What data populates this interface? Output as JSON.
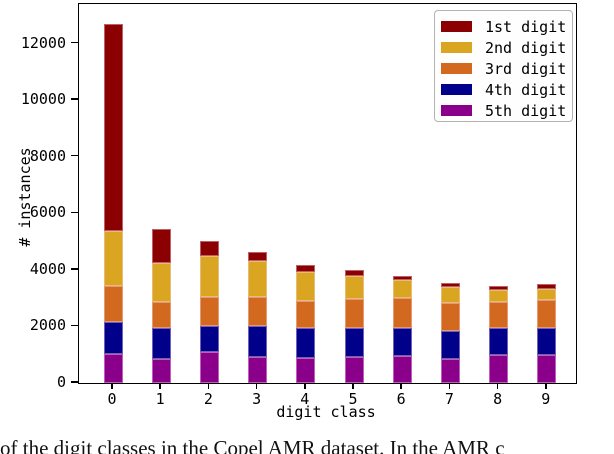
{
  "figure": {
    "ylabel": "# instances",
    "xlabel": "digit class",
    "yticks": [
      0,
      2000,
      4000,
      6000,
      8000,
      10000,
      12000
    ],
    "ylim": [
      0,
      13400
    ],
    "background_color": "#ffffff",
    "frame_color": "#000000"
  },
  "legend": {
    "position": "upper right",
    "entries": [
      {
        "label": "1st digit",
        "color": "#8b0000"
      },
      {
        "label": "2nd digit",
        "color": "#daa520"
      },
      {
        "label": "3rd digit",
        "color": "#d2691e"
      },
      {
        "label": "4th digit",
        "color": "#00008b"
      },
      {
        "label": "5th digit",
        "color": "#8b008b"
      }
    ]
  },
  "chart_data": {
    "type": "bar",
    "stacked": true,
    "title": "",
    "xlabel": "digit class",
    "ylabel": "# instances",
    "categories": [
      "0",
      "1",
      "2",
      "3",
      "4",
      "5",
      "6",
      "7",
      "8",
      "9"
    ],
    "stack_order_bottom_to_top": [
      "5th digit",
      "4th digit",
      "3rd digit",
      "2nd digit",
      "1st digit"
    ],
    "series": [
      {
        "name": "1st digit",
        "color": "#8b0000",
        "values": [
          7310,
          1220,
          530,
          290,
          240,
          200,
          170,
          140,
          140,
          160
        ]
      },
      {
        "name": "2nd digit",
        "color": "#daa520",
        "values": [
          1960,
          1360,
          1450,
          1280,
          1040,
          830,
          640,
          570,
          450,
          410
        ]
      },
      {
        "name": "3rd digit",
        "color": "#d2691e",
        "values": [
          1270,
          930,
          1030,
          1030,
          960,
          1030,
          1050,
          1000,
          910,
          990
        ]
      },
      {
        "name": "4th digit",
        "color": "#00008b",
        "values": [
          1120,
          1080,
          920,
          1090,
          1040,
          1010,
          980,
          980,
          960,
          960
        ]
      },
      {
        "name": "5th digit",
        "color": "#8b008b",
        "values": [
          1040,
          860,
          1100,
          930,
          900,
          930,
          960,
          860,
          980,
          980
        ]
      }
    ],
    "totals": [
      12700,
      5450,
      5030,
      4620,
      4180,
      4000,
      3800,
      3550,
      3440,
      3500
    ],
    "ylim": [
      0,
      13400
    ],
    "grid": false,
    "legend_position": "upper right"
  },
  "caption": "of the digit classes in the Copel AMR dataset. In the AMR c"
}
